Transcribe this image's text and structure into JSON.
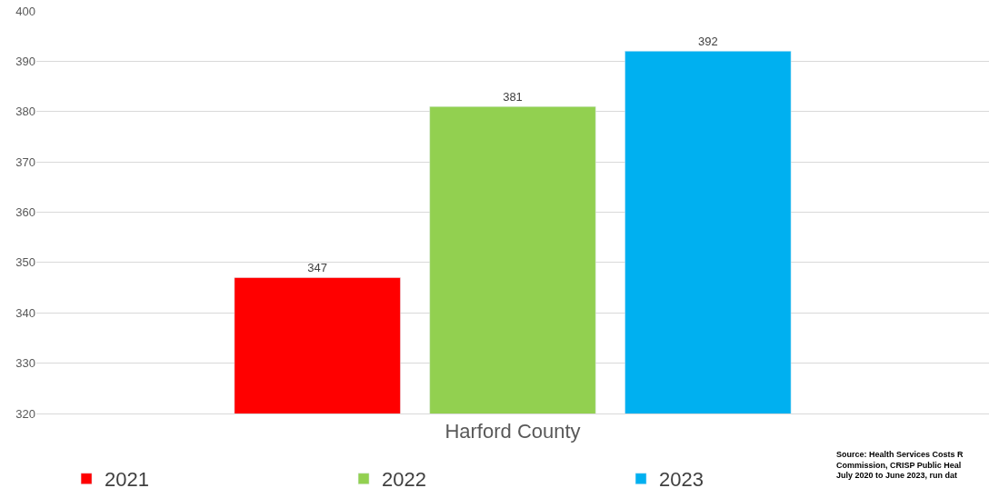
{
  "chart_data": {
    "type": "bar",
    "categories": [
      "Harford County"
    ],
    "series": [
      {
        "name": "2021",
        "color": "#ff0000",
        "values": [
          347
        ]
      },
      {
        "name": "2022",
        "color": "#92d050",
        "values": [
          381
        ]
      },
      {
        "name": "2023",
        "color": "#00b0f0",
        "values": [
          392
        ]
      }
    ],
    "ylim": [
      320,
      400
    ],
    "yticks": [
      320,
      330,
      340,
      350,
      360,
      370,
      380,
      390,
      400
    ],
    "grid": "y",
    "legend": "bottom",
    "data_labels": true,
    "annotations": [
      "Source: Health Services Costs R\nCommission, CRISP Public Heal\nJuly 2020 to June 2023, run dat"
    ]
  }
}
